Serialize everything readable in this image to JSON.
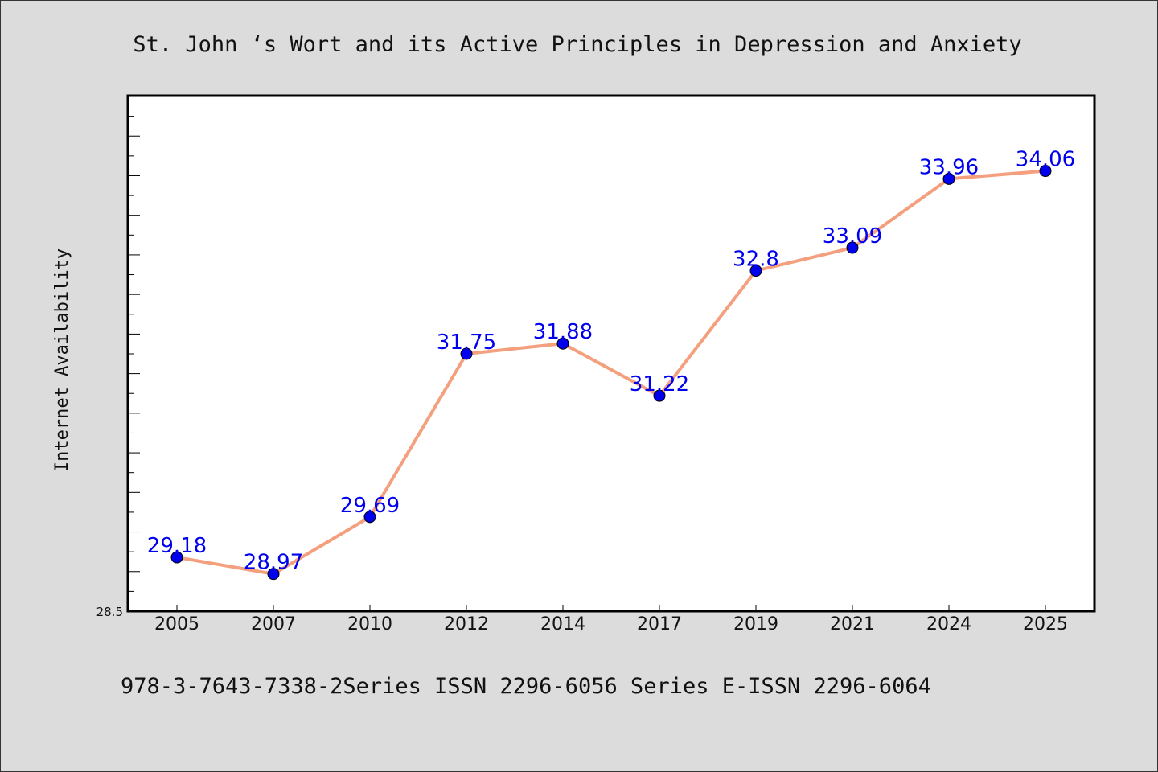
{
  "chart_data": {
    "type": "line",
    "title": "St. John ‘s Wort and its Active Principles in Depression and Anxiety",
    "xlabel": "",
    "ylabel": "Internet Availability",
    "categories": [
      "2005",
      "2007",
      "2010",
      "2012",
      "2014",
      "2017",
      "2019",
      "2021",
      "2024",
      "2025"
    ],
    "series": [
      {
        "values": [
          29.18,
          28.97,
          29.69,
          31.75,
          31.88,
          31.22,
          32.8,
          33.09,
          33.96,
          34.06
        ],
        "labels": [
          "29.18",
          "28.97",
          "29.69",
          "31.75",
          "31.88",
          "31.22",
          "32.8",
          "33.09",
          "33.96",
          "34.06"
        ]
      }
    ],
    "ylim": [
      28.5,
      35.0
    ],
    "y_tick_label": "28.5",
    "grid": false,
    "legend": "none",
    "line_color": "#f4a07f",
    "marker_color": "#0000ee",
    "label_color": "#0000ee"
  },
  "footer": {
    "text": "978-3-7643-7338-2Series ISSN 2296-6056 Series E-ISSN 2296-6064"
  }
}
